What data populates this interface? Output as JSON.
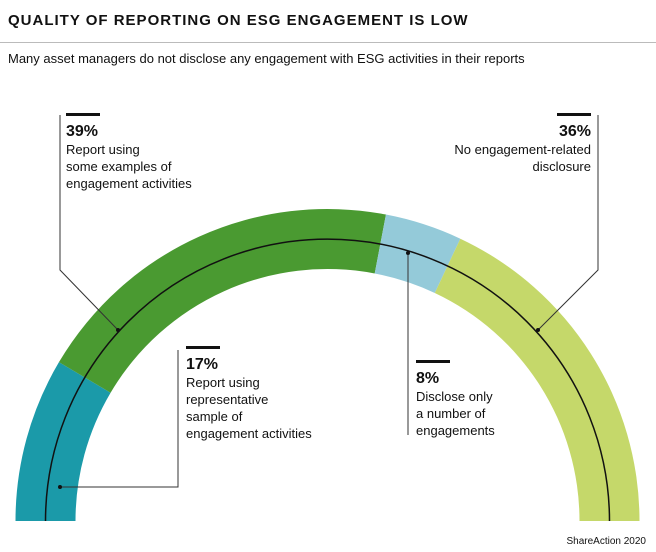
{
  "chart_data": {
    "type": "semi-donut",
    "title": "QUALITY OF REPORTING ON ESG ENGAGEMENT IS LOW",
    "subtitle": "Many asset managers do not disclose any engagement with ESG activities in their reports",
    "source": "ShareAction 2020",
    "categories": [
      "Report using\nrepresentative\nsample of\nengagement activities",
      "Report using\nsome examples of\nengagement activities",
      "Disclose only\na number of\nengagements",
      "No engagement-related\ndisclosure"
    ],
    "values": [
      17,
      39,
      8,
      36
    ],
    "value_labels": [
      "17%",
      "39%",
      "8%",
      "36%"
    ],
    "colors": [
      "#1b9aa9",
      "#4a9a31",
      "#94cad9",
      "#c5d86a"
    ]
  }
}
